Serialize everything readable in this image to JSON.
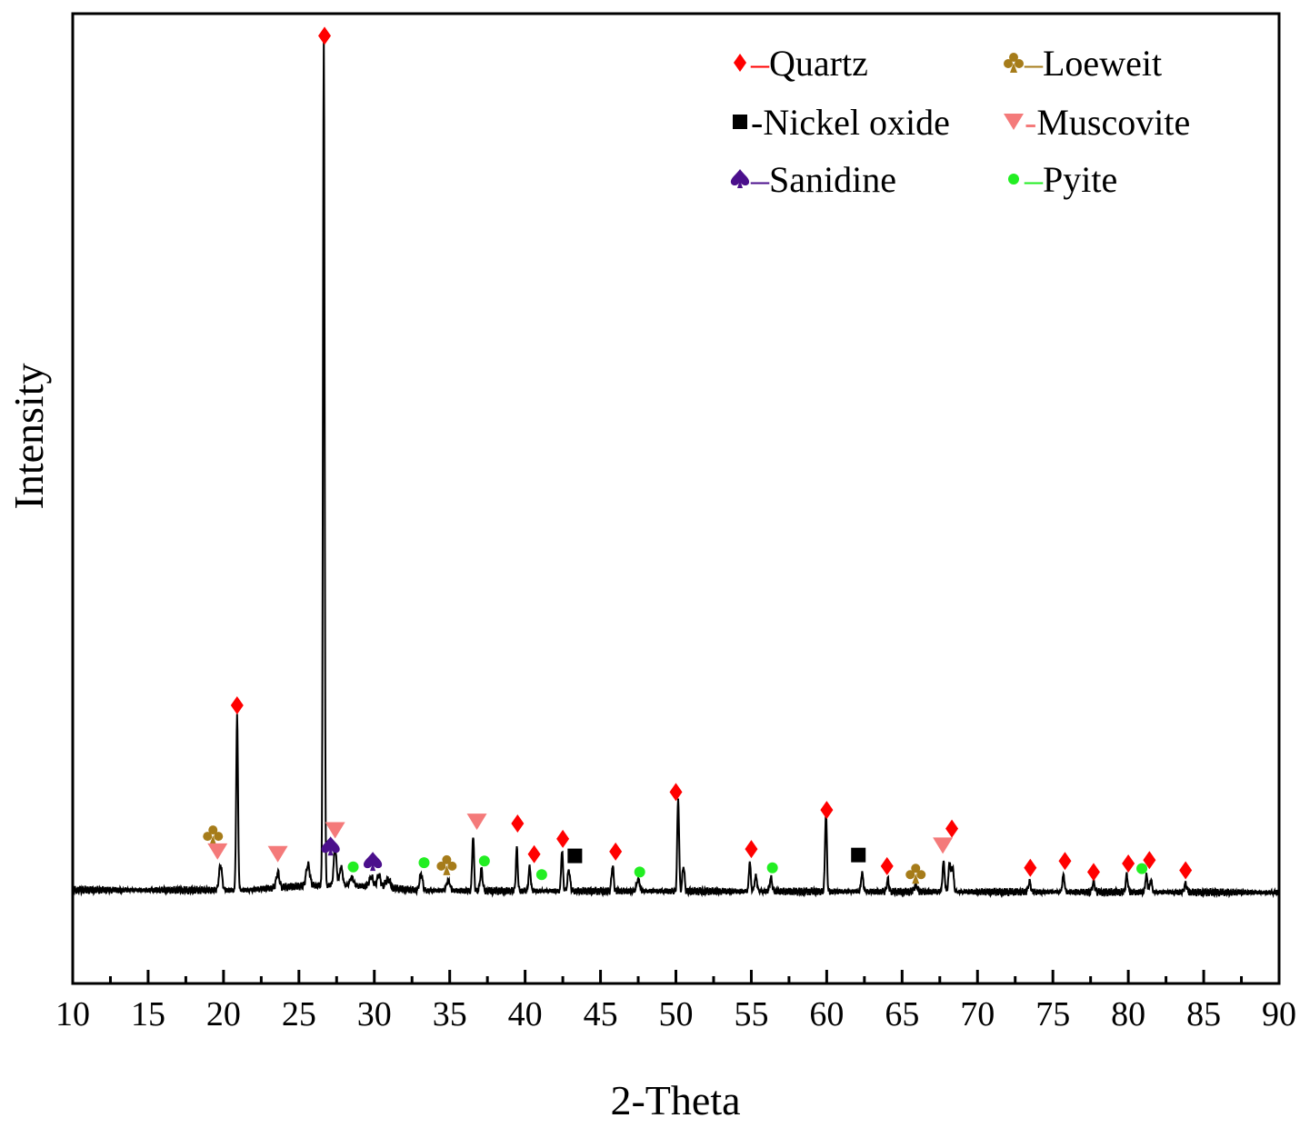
{
  "chart_data": {
    "type": "line",
    "title": "",
    "xlabel": "2-Theta",
    "ylabel": "Intensity",
    "xlim": [
      10,
      90
    ],
    "ylim": [
      -0.11,
      1.03
    ],
    "x_ticks": [
      "10",
      "15",
      "20",
      "25",
      "30",
      "35",
      "40",
      "45",
      "50",
      "55",
      "60",
      "65",
      "70",
      "75",
      "80",
      "85",
      "90"
    ],
    "y_ticks_shown": false,
    "grid": false,
    "legend_position": "top-right",
    "colors": {
      "line": "#000000",
      "quartz": "#ff0000",
      "loeweit": "#a67c1a",
      "nickel_oxide": "#000000",
      "muscovite": "#f47a7a",
      "sanidine": "#4b0f8c",
      "pyite": "#22ee22"
    },
    "legend": [
      {
        "key": "quartz",
        "symbol": "diamond",
        "dash": "–",
        "label": "Quartz"
      },
      {
        "key": "loeweit",
        "symbol": "club",
        "dash": "–",
        "label": "Loeweit"
      },
      {
        "key": "nickel_oxide",
        "symbol": "square",
        "dash": "-",
        "label": "Nickel oxide"
      },
      {
        "key": "muscovite",
        "symbol": "triangle-down",
        "dash": "-",
        "label": "Muscovite"
      },
      {
        "key": "sanidine",
        "symbol": "spade",
        "dash": "–",
        "label": "Sanidine"
      },
      {
        "key": "pyite",
        "symbol": "circle",
        "dash": "–",
        "label": "Pyite"
      }
    ],
    "baseline": 0.0,
    "peaks": [
      {
        "x": 19.8,
        "h": 0.03,
        "w": 0.1
      },
      {
        "x": 20.9,
        "h": 0.205,
        "w": 0.06
      },
      {
        "x": 23.6,
        "h": 0.018,
        "w": 0.1
      },
      {
        "x": 25.6,
        "h": 0.025,
        "w": 0.12
      },
      {
        "x": 26.65,
        "h": 0.995,
        "w": 0.055
      },
      {
        "x": 27.4,
        "h": 0.045,
        "w": 0.09
      },
      {
        "x": 27.8,
        "h": 0.022,
        "w": 0.1
      },
      {
        "x": 28.5,
        "h": 0.01,
        "w": 0.12
      },
      {
        "x": 29.8,
        "h": 0.012,
        "w": 0.12
      },
      {
        "x": 30.3,
        "h": 0.014,
        "w": 0.12
      },
      {
        "x": 30.9,
        "h": 0.01,
        "w": 0.15
      },
      {
        "x": 33.1,
        "h": 0.02,
        "w": 0.1
      },
      {
        "x": 34.9,
        "h": 0.012,
        "w": 0.12
      },
      {
        "x": 36.55,
        "h": 0.065,
        "w": 0.06
      },
      {
        "x": 37.1,
        "h": 0.025,
        "w": 0.08
      },
      {
        "x": 39.45,
        "h": 0.05,
        "w": 0.06
      },
      {
        "x": 40.3,
        "h": 0.028,
        "w": 0.07
      },
      {
        "x": 42.45,
        "h": 0.048,
        "w": 0.06
      },
      {
        "x": 42.9,
        "h": 0.025,
        "w": 0.08
      },
      {
        "x": 45.8,
        "h": 0.03,
        "w": 0.07
      },
      {
        "x": 47.5,
        "h": 0.014,
        "w": 0.1
      },
      {
        "x": 50.15,
        "h": 0.11,
        "w": 0.06
      },
      {
        "x": 50.5,
        "h": 0.03,
        "w": 0.07
      },
      {
        "x": 54.9,
        "h": 0.035,
        "w": 0.06
      },
      {
        "x": 55.3,
        "h": 0.018,
        "w": 0.08
      },
      {
        "x": 56.3,
        "h": 0.016,
        "w": 0.08
      },
      {
        "x": 59.95,
        "h": 0.095,
        "w": 0.06
      },
      {
        "x": 62.35,
        "h": 0.022,
        "w": 0.07
      },
      {
        "x": 64.05,
        "h": 0.014,
        "w": 0.07
      },
      {
        "x": 65.9,
        "h": 0.008,
        "w": 0.1
      },
      {
        "x": 67.75,
        "h": 0.035,
        "w": 0.07
      },
      {
        "x": 68.15,
        "h": 0.035,
        "w": 0.07
      },
      {
        "x": 68.35,
        "h": 0.03,
        "w": 0.07
      },
      {
        "x": 73.45,
        "h": 0.012,
        "w": 0.08
      },
      {
        "x": 75.7,
        "h": 0.02,
        "w": 0.07
      },
      {
        "x": 77.7,
        "h": 0.012,
        "w": 0.08
      },
      {
        "x": 79.9,
        "h": 0.02,
        "w": 0.07
      },
      {
        "x": 81.2,
        "h": 0.02,
        "w": 0.07
      },
      {
        "x": 81.5,
        "h": 0.015,
        "w": 0.07
      },
      {
        "x": 83.8,
        "h": 0.01,
        "w": 0.08
      }
    ],
    "markers": [
      {
        "phase": "quartz",
        "x": 20.9,
        "y": 0.217
      },
      {
        "phase": "quartz",
        "x": 26.7,
        "y": 1.004
      },
      {
        "phase": "quartz",
        "x": 39.5,
        "y": 0.078
      },
      {
        "phase": "quartz",
        "x": 40.6,
        "y": 0.042
      },
      {
        "phase": "quartz",
        "x": 42.5,
        "y": 0.06
      },
      {
        "phase": "quartz",
        "x": 46.0,
        "y": 0.045
      },
      {
        "phase": "quartz",
        "x": 50.0,
        "y": 0.115
      },
      {
        "phase": "quartz",
        "x": 55.0,
        "y": 0.048
      },
      {
        "phase": "quartz",
        "x": 60.0,
        "y": 0.094
      },
      {
        "phase": "quartz",
        "x": 64.0,
        "y": 0.028
      },
      {
        "phase": "quartz",
        "x": 68.3,
        "y": 0.072
      },
      {
        "phase": "quartz",
        "x": 73.5,
        "y": 0.026
      },
      {
        "phase": "quartz",
        "x": 75.8,
        "y": 0.034
      },
      {
        "phase": "quartz",
        "x": 77.7,
        "y": 0.021
      },
      {
        "phase": "quartz",
        "x": 80.0,
        "y": 0.031
      },
      {
        "phase": "quartz",
        "x": 81.4,
        "y": 0.035
      },
      {
        "phase": "quartz",
        "x": 83.8,
        "y": 0.023
      },
      {
        "phase": "loeweit",
        "x": 19.3,
        "y": 0.064
      },
      {
        "phase": "loeweit",
        "x": 34.8,
        "y": 0.029
      },
      {
        "phase": "loeweit",
        "x": 65.9,
        "y": 0.019
      },
      {
        "phase": "nickel_oxide",
        "x": 43.3,
        "y": 0.04
      },
      {
        "phase": "nickel_oxide",
        "x": 62.1,
        "y": 0.041
      },
      {
        "phase": "muscovite",
        "x": 19.6,
        "y": 0.045
      },
      {
        "phase": "muscovite",
        "x": 23.6,
        "y": 0.042
      },
      {
        "phase": "muscovite",
        "x": 27.4,
        "y": 0.07
      },
      {
        "phase": "muscovite",
        "x": 36.8,
        "y": 0.08
      },
      {
        "phase": "muscovite",
        "x": 67.7,
        "y": 0.052
      },
      {
        "phase": "sanidine",
        "x": 27.1,
        "y": 0.051
      },
      {
        "phase": "sanidine",
        "x": 29.9,
        "y": 0.033
      },
      {
        "phase": "pyite",
        "x": 28.6,
        "y": 0.027
      },
      {
        "phase": "pyite",
        "x": 33.3,
        "y": 0.032
      },
      {
        "phase": "pyite",
        "x": 37.3,
        "y": 0.034
      },
      {
        "phase": "pyite",
        "x": 41.1,
        "y": 0.018
      },
      {
        "phase": "pyite",
        "x": 47.6,
        "y": 0.021
      },
      {
        "phase": "pyite",
        "x": 56.4,
        "y": 0.026
      },
      {
        "phase": "pyite",
        "x": 80.9,
        "y": 0.025
      }
    ]
  }
}
